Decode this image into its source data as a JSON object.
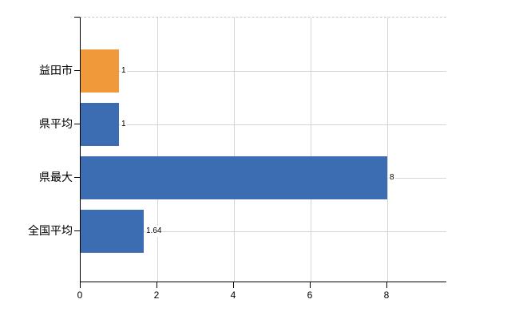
{
  "chart_data": {
    "type": "bar",
    "orientation": "horizontal",
    "title": "",
    "xlabel": "",
    "ylabel": "",
    "categories": [
      "益田市",
      "県平均",
      "県最大",
      "全国平均"
    ],
    "values": [
      1,
      1,
      8,
      1.64
    ],
    "value_labels": [
      "1",
      "1",
      "8",
      "1.64"
    ],
    "bar_colors": [
      "#f0993a",
      "#3c6db3",
      "#3c6db3",
      "#3c6db3"
    ],
    "x_tick_labels": [
      "0",
      "2",
      "4",
      "6",
      "8"
    ],
    "x_tick_values": [
      0,
      2,
      4,
      6,
      8
    ],
    "xlim": [
      0,
      9.56
    ],
    "grid": true,
    "legend_visible": false,
    "colors": {
      "background": "#ffffff",
      "axis": "#000000",
      "grid": "#d3d8d3",
      "plot_top_border": "#c9c9c9",
      "text": "#000000",
      "bar_orange": "#f0993a",
      "bar_blue": "#3c6db3"
    }
  }
}
